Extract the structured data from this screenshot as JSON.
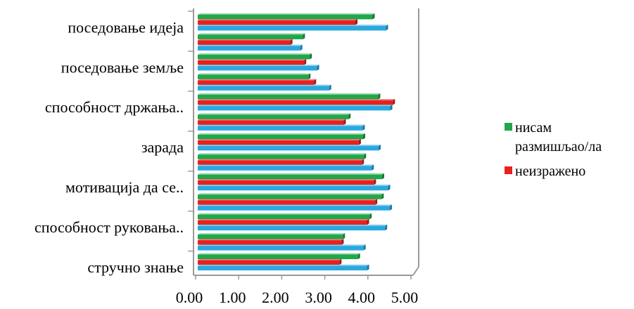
{
  "chart_data": {
    "type": "bar",
    "orientation": "horizontal",
    "xlim": [
      0,
      5
    ],
    "xticks": [
      "0.00",
      "1.00",
      "2.00",
      "3.00",
      "4.00",
      "5.00"
    ],
    "grid": false,
    "legend_position": "right",
    "labeled_categories": [
      "поседовање идеја",
      "поседовање земље",
      "способност држања..",
      "зарада",
      "мотивација да се..",
      "способност руковања..",
      "стручно знање"
    ],
    "series": [
      {
        "name": "нисам размишљао/ла",
        "color": "#1FA84A",
        "values": [
          4.06,
          2.44,
          2.6,
          2.57,
          4.19,
          3.5,
          3.84,
          3.86,
          4.28,
          4.27,
          3.99,
          3.37,
          3.72
        ]
      },
      {
        "name": "неизражено",
        "color": "#E8201E",
        "values": [
          3.66,
          2.15,
          2.47,
          2.7,
          4.53,
          3.39,
          3.74,
          3.81,
          4.09,
          4.12,
          3.93,
          3.34,
          3.29
        ]
      },
      {
        "name": "",
        "color": "#2BA8E0",
        "values": [
          4.37,
          2.38,
          2.77,
          3.05,
          4.47,
          3.83,
          4.2,
          4.04,
          4.42,
          4.46,
          4.35,
          3.85,
          3.93
        ]
      }
    ]
  }
}
